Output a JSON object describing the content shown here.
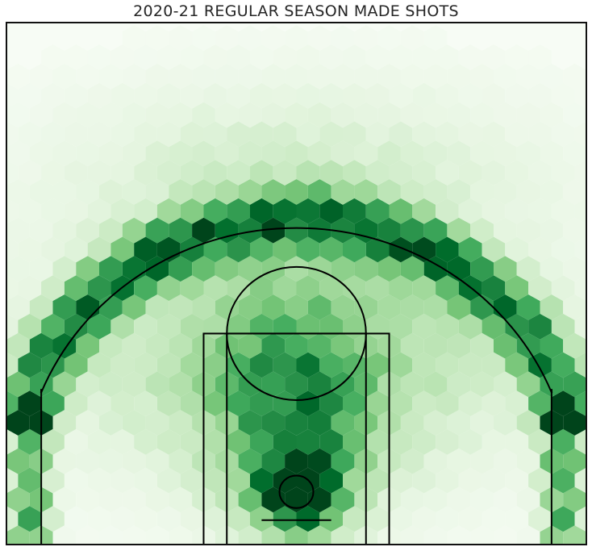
{
  "chart_data": {
    "type": "heatmap",
    "subtype": "hexbin",
    "title": "2020-21 REGULAR SEASON MADE SHOTS",
    "xlabel": "",
    "ylabel": "",
    "xlim": [
      -250,
      250
    ],
    "ylim": [
      -47.5,
      422.5
    ],
    "grid": false,
    "legend": "none",
    "colormap": "Greens",
    "colors": {
      "low": "#f7fcf5",
      "high": "#00441b",
      "court_lines": "#000000"
    },
    "hex_gridsize": 25,
    "density_model": [
      {
        "name": "rim",
        "x": 0,
        "y": 0,
        "sx": 22,
        "sy": 22,
        "weight": 1.0
      },
      {
        "name": "paint",
        "x": 0,
        "y": 60,
        "sx": 45,
        "sy": 70,
        "weight": 0.55
      },
      {
        "name": "midrange",
        "x": 0,
        "y": 130,
        "sx": 150,
        "sy": 90,
        "weight": 0.38
      },
      {
        "name": "above-break-three",
        "radius": 245,
        "sigma": 18,
        "weight": 0.72
      },
      {
        "name": "corner-three",
        "x_abs": 230,
        "y_max": 92,
        "sigma": 12,
        "weight": 0.6
      },
      {
        "name": "deep",
        "x": 0,
        "y": 300,
        "sx": 160,
        "sy": 60,
        "weight": 0.15
      }
    ],
    "court": {
      "hoop_radius": 7.5,
      "backboard": {
        "x": [
          -30,
          30
        ],
        "y": -7.5
      },
      "outer_box": {
        "x": [
          -80,
          80
        ],
        "y": [
          -47.5,
          142.5
        ]
      },
      "inner_box": {
        "x": [
          -60,
          60
        ],
        "y": [
          -47.5,
          142.5
        ]
      },
      "free_throw_circle": {
        "center_y": 142.5,
        "radius": 60
      },
      "corner_three": {
        "x": 220,
        "y": [
          -47.5,
          92.5
        ]
      },
      "three_arc": {
        "radius": 237.5,
        "from_deg": 22,
        "to_deg": 158
      },
      "outer_lines": {
        "x": [
          -250,
          250
        ],
        "y": [
          -47.5,
          422.5
        ]
      }
    }
  }
}
